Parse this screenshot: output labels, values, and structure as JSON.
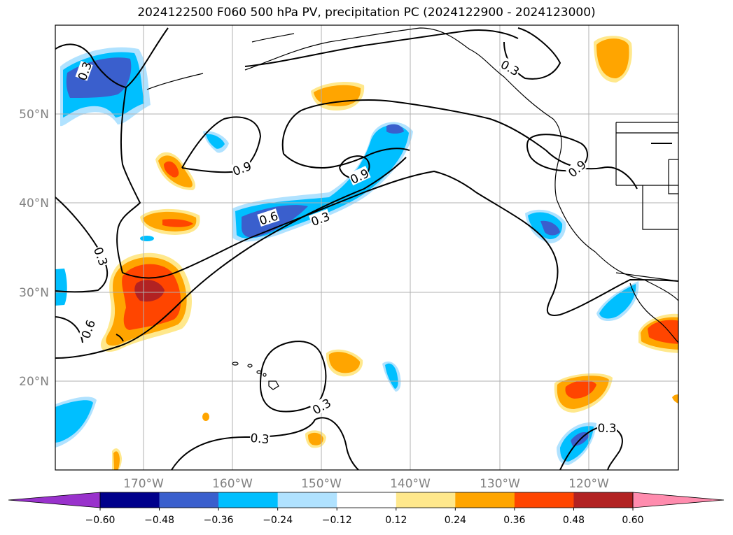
{
  "title": "2024122500 F060 500 hPa PV, precipitation PC (2024122900 - 2024123000)",
  "lat_labels": [
    "50°N",
    "40°N",
    "30°N",
    "20°N"
  ],
  "lon_labels": [
    "170°W",
    "160°W",
    "150°W",
    "140°W",
    "130°W",
    "120°W"
  ],
  "contour_labels": [
    "0.3",
    "0.9",
    "0.6",
    "0.3",
    "0.9",
    "0.3",
    "0.9",
    "0.3",
    "0.6",
    "0.3",
    "0.3",
    "0.3"
  ],
  "colorbar": {
    "tick_labels": [
      "−0.60",
      "−0.48",
      "−0.36",
      "−0.24",
      "−0.12",
      "0.12",
      "0.24",
      "0.36",
      "0.48",
      "0.60"
    ],
    "colors": [
      "#9932cc",
      "#00008b",
      "#3a5fcd",
      "#00bfff",
      "#b0e2ff",
      "#ffffff",
      "#ffe88c",
      "#ffa500",
      "#ff4500",
      "#b22222",
      "#ff8cae"
    ]
  },
  "colors": {
    "neg_1": "#b0e2ff",
    "neg_2": "#00bfff",
    "neg_3": "#3a5fcd",
    "pos_1": "#ffe88c",
    "pos_2": "#ffa500",
    "pos_3": "#ff4500",
    "pos_4": "#b22222"
  }
}
